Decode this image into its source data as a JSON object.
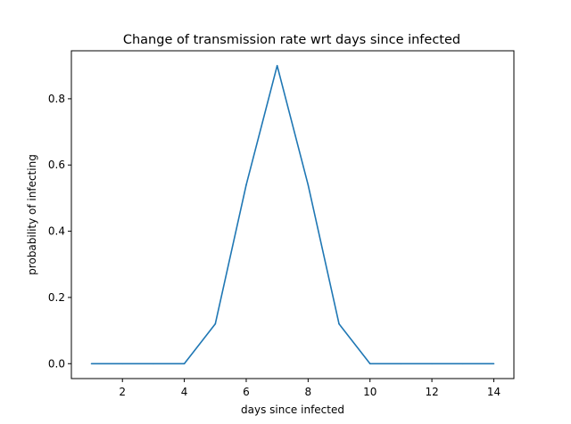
{
  "chart_data": {
    "type": "line",
    "title": "Change of transmission rate wrt days since infected",
    "xlabel": "days since infected",
    "ylabel": "probability of infecting",
    "x": [
      1,
      2,
      3,
      4,
      5,
      6,
      7,
      8,
      9,
      10,
      11,
      12,
      13,
      14
    ],
    "series": [
      {
        "values": [
          0.0,
          0.0,
          0.0,
          0.0,
          0.12,
          0.54,
          0.9,
          0.54,
          0.12,
          0.0,
          0.0,
          0.0,
          0.0,
          0.0
        ],
        "color": "#1f77b4"
      }
    ],
    "xlim": [
      0.35,
      14.65
    ],
    "ylim": [
      -0.045,
      0.945
    ],
    "xticks": [
      2,
      4,
      6,
      8,
      10,
      12,
      14
    ],
    "xtick_labels": [
      "2",
      "4",
      "6",
      "8",
      "10",
      "12",
      "14"
    ],
    "yticks": [
      0.0,
      0.2,
      0.4,
      0.6,
      0.8
    ],
    "ytick_labels": [
      "0.0",
      "0.2",
      "0.4",
      "0.6",
      "0.8"
    ],
    "grid": false,
    "legend": "none"
  }
}
